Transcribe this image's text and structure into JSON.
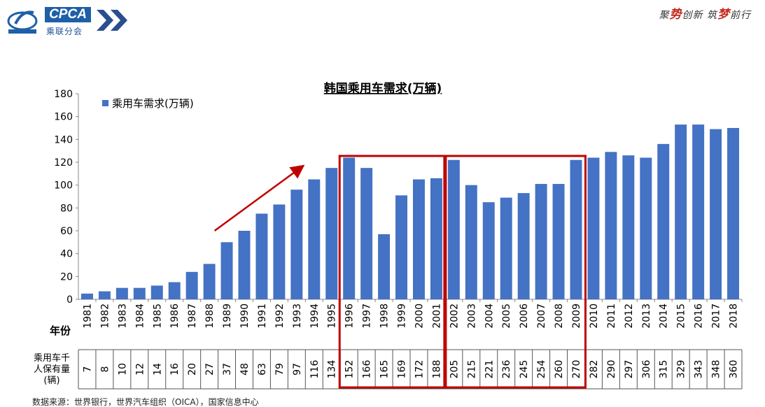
{
  "header": {
    "logo_text": "CPCA",
    "logo_subtext": "乘联分会",
    "slogan_parts": [
      {
        "text": "聚",
        "style": "dark"
      },
      {
        "text": "势",
        "style": "red"
      },
      {
        "text": "创新  筑",
        "style": "dark"
      },
      {
        "text": "梦",
        "style": "red"
      },
      {
        "text": "前行",
        "style": "dark"
      }
    ],
    "colors": {
      "logo_blue": "#1f5fa8",
      "slogan_red": "#c4271c",
      "chevron_blue": "#2a4f8f"
    }
  },
  "chart_data": {
    "type": "bar",
    "title": "韩国乘用车需求(万辆)",
    "xlabel": "",
    "ylabel": "",
    "ylim": [
      0,
      180
    ],
    "yticks": [
      0,
      20,
      40,
      60,
      80,
      100,
      120,
      140,
      160,
      180
    ],
    "legend_position": "top-left",
    "grid": false,
    "bar_color": "#4472c4",
    "categories": [
      "1981",
      "1982",
      "1983",
      "1984",
      "1985",
      "1986",
      "1987",
      "1988",
      "1989",
      "1990",
      "1991",
      "1992",
      "1993",
      "1994",
      "1995",
      "1996",
      "1997",
      "1998",
      "1999",
      "2000",
      "2001",
      "2002",
      "2003",
      "2004",
      "2005",
      "2006",
      "2007",
      "2008",
      "2009",
      "2010",
      "2011",
      "2012",
      "2013",
      "2014",
      "2015",
      "2016",
      "2017",
      "2018"
    ],
    "series": [
      {
        "name": "乘用车需求(万辆)",
        "values": [
          5,
          7,
          10,
          10,
          12,
          15,
          24,
          31,
          50,
          60,
          75,
          83,
          96,
          105,
          115,
          124,
          115,
          57,
          91,
          105,
          106,
          122,
          100,
          85,
          89,
          93,
          101,
          101,
          122,
          124,
          129,
          126,
          124,
          136,
          153,
          153,
          149,
          150
        ]
      }
    ],
    "row_label_year": "年份",
    "ownership_table": {
      "label_lines": [
        "乘用车千",
        "人保有量",
        "(辆)"
      ],
      "values": [
        "7",
        "8",
        "10",
        "12",
        "14",
        "16",
        "20",
        "27",
        "37",
        "48",
        "63",
        "79",
        "97",
        "116",
        "134",
        "152",
        "166",
        "165",
        "169",
        "172",
        "188",
        "205",
        "215",
        "221",
        "236",
        "245",
        "254",
        "260",
        "270",
        "282",
        "290",
        "297",
        "306",
        "315",
        "329",
        "343",
        "348",
        "360"
      ]
    },
    "highlight_boxes": [
      {
        "from": "1996",
        "to": "2001",
        "color": "#c00000"
      },
      {
        "from": "2002",
        "to": "2009",
        "color": "#c00000"
      }
    ],
    "trend_arrow": {
      "from": "1988",
      "to": "1993",
      "color": "#c00000"
    }
  },
  "footer": {
    "source": "数据来源：世界银行，世界汽车组织（OICA），国家信息中心"
  }
}
